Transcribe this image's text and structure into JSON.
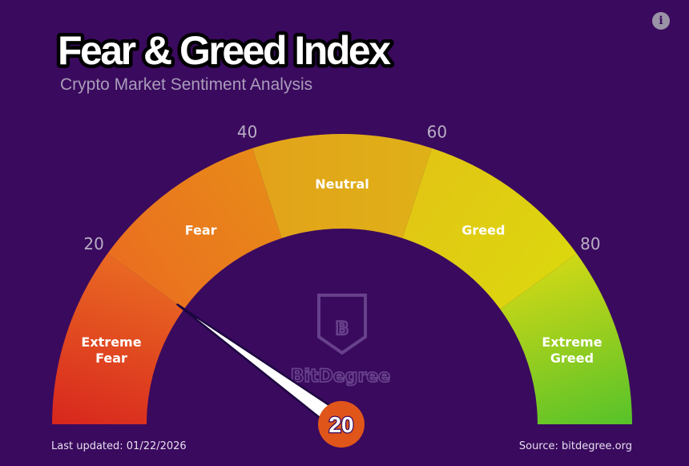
{
  "header": {
    "title": "Fear & Greed Index",
    "subtitle": "Crypto Market Sentiment Analysis",
    "info_glyph": "i"
  },
  "chart_data": {
    "type": "gauge",
    "title": "Fear & Greed Index",
    "subtitle": "Crypto Market Sentiment Analysis",
    "range": [
      0,
      100
    ],
    "value": 20,
    "tick_labels": [
      "20",
      "40",
      "60",
      "80"
    ],
    "tick_values": [
      20,
      40,
      60,
      80
    ],
    "zones": [
      {
        "label_lines": [
          "Extreme",
          "Fear"
        ],
        "from": 0,
        "to": 20,
        "color_start": "#d8261e",
        "color_end": "#e96a22"
      },
      {
        "label_lines": [
          "Fear"
        ],
        "from": 20,
        "to": 40,
        "color_start": "#ea6f20",
        "color_end": "#e88a18"
      },
      {
        "label_lines": [
          "Neutral"
        ],
        "from": 40,
        "to": 60,
        "color_start": "#e2a21a",
        "color_end": "#dfb117"
      },
      {
        "label_lines": [
          "Greed"
        ],
        "from": 60,
        "to": 80,
        "color_start": "#e2c514",
        "color_end": "#dcd70e"
      },
      {
        "label_lines": [
          "Extreme",
          "Greed"
        ],
        "from": 80,
        "to": 100,
        "color_start": "#cfd816",
        "color_end": "#56c22a"
      }
    ]
  },
  "needle": {
    "color": "#ffffff",
    "outline": "#1d0640"
  },
  "value_badge": {
    "text": "20",
    "color": "#e0561a"
  },
  "watermark": {
    "brand": "BitDegree",
    "logo_letter": "B"
  },
  "footer": {
    "last_updated": "Last updated: 01/22/2026",
    "source": "Source: bitdegree.org"
  },
  "colors": {
    "background": "#3a0a5e",
    "title_fill": "#ffffff",
    "title_stroke": "#000000",
    "subtitle": "#a99cba",
    "tick": "#b8aec4",
    "zone_label": "#ffffff",
    "footer": "#e6def0"
  }
}
